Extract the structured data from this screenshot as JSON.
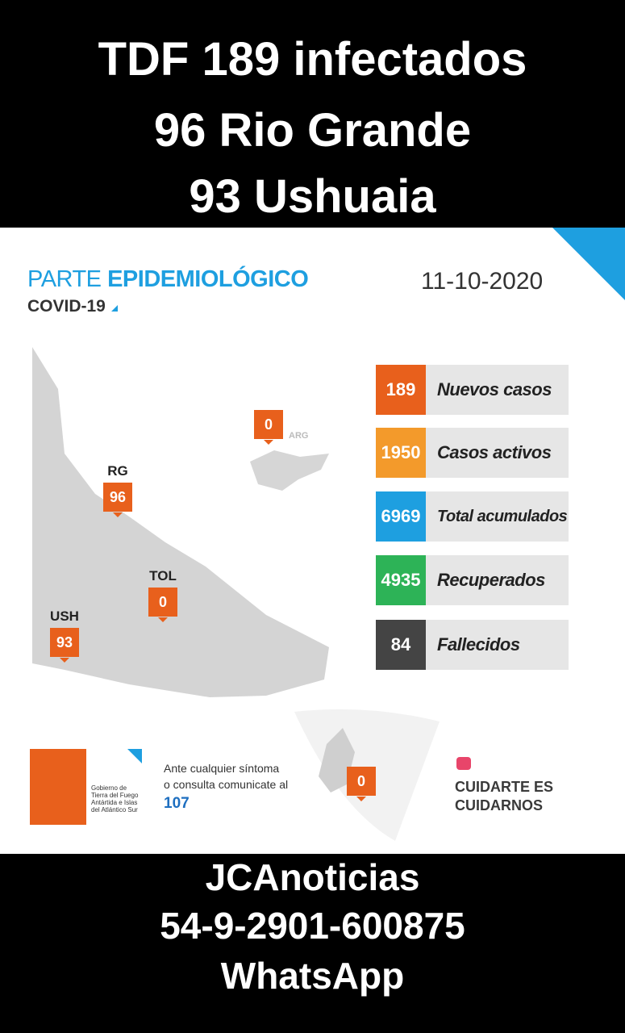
{
  "header": {
    "lines": [
      "TDF 189 infectados",
      "96 Rio Grande",
      "93 Ushuaia"
    ]
  },
  "report": {
    "title_light": "PARTE",
    "title_bold": "EPIDEMIOLÓGICO",
    "subtitle": "COVID-19",
    "date": "11-10-2020"
  },
  "map": {
    "markers": [
      {
        "label": "RG",
        "value": "96"
      },
      {
        "label": "TOL",
        "value": "0"
      },
      {
        "label": "USH",
        "value": "93"
      },
      {
        "label": "ARG",
        "value": "0"
      }
    ],
    "antarctica_value": "0"
  },
  "stats": [
    {
      "value": "189",
      "label": "Nuevos casos"
    },
    {
      "value": "1950",
      "label": "Casos activos"
    },
    {
      "value": "6969",
      "label": "Total acumulados"
    },
    {
      "value": "4935",
      "label": "Recuperados"
    },
    {
      "value": "84",
      "label": "Fallecidos"
    }
  ],
  "contact": {
    "org_lines": [
      "Gobierno de",
      "Tierra del Fuego",
      "Antártida e Islas",
      "del Atlántico Sur"
    ],
    "text_lines": [
      "Ante cualquier síntoma",
      "o consulta comunicate al"
    ],
    "phone": "107"
  },
  "slogan": {
    "lines": [
      "CUIDARTE ES",
      "CUIDARNOS"
    ]
  },
  "footer": {
    "lines": [
      "JCAnoticias",
      "54-9-2901-600875",
      "WhatsApp"
    ]
  }
}
